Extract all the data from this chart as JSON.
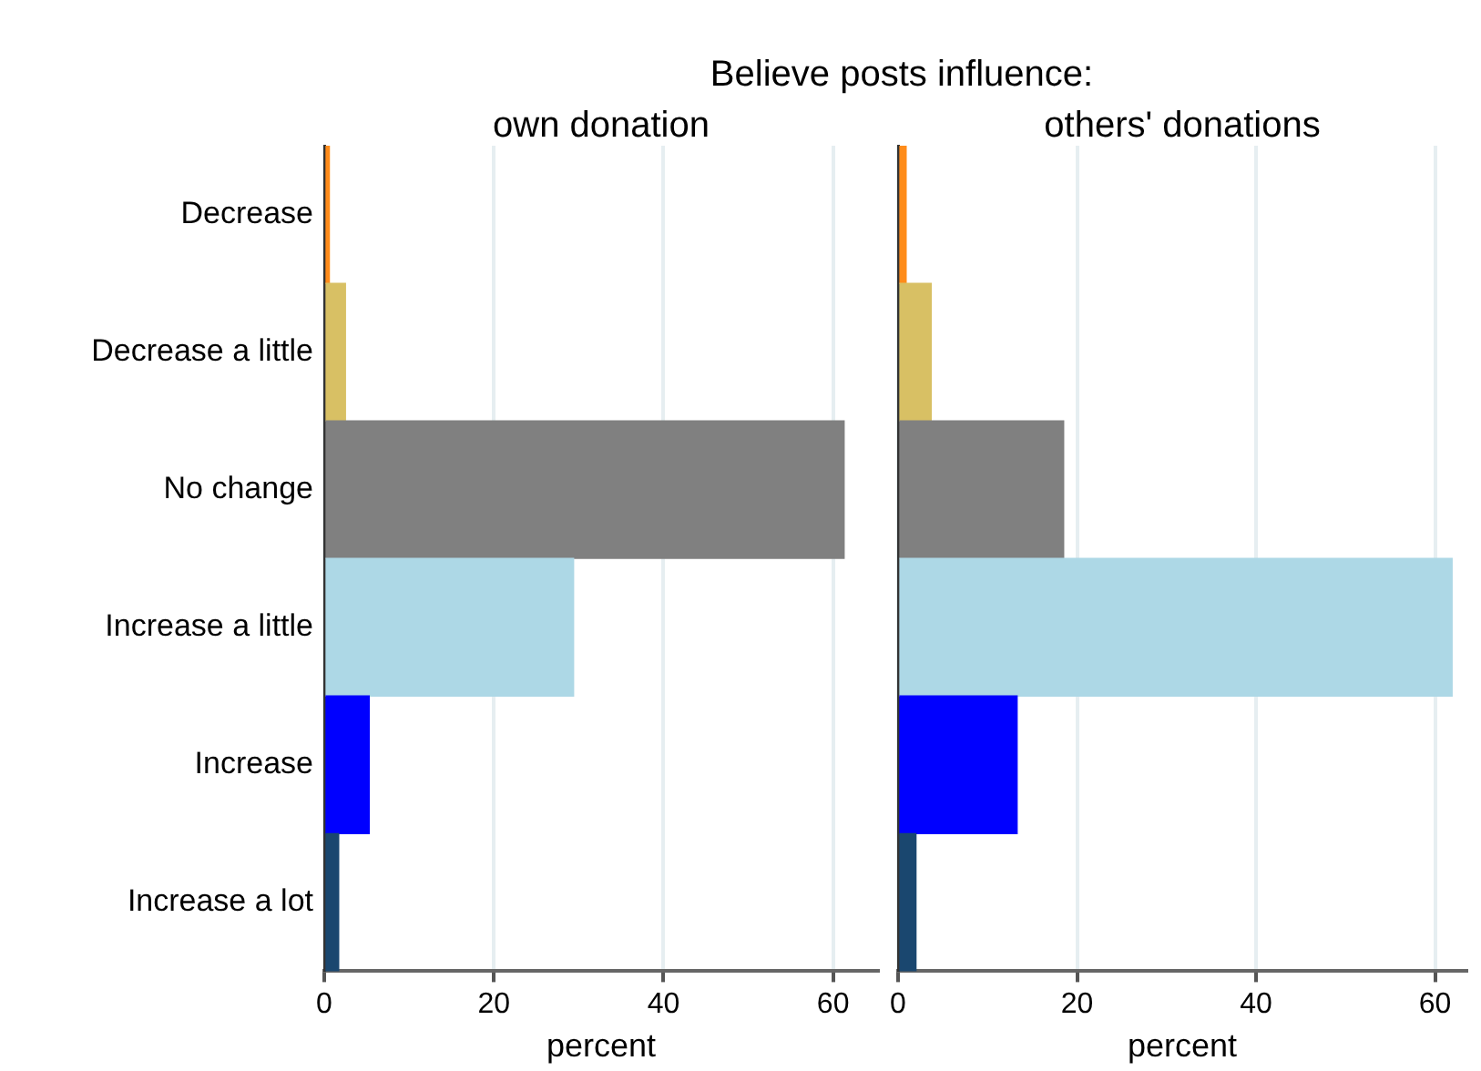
{
  "chart_data": [
    {
      "type": "bar",
      "orientation": "horizontal",
      "title": "Believe posts influence:",
      "subtitle": "own donation",
      "xlabel": "percent",
      "categories": [
        "Decrease",
        "Decrease a little",
        "No change",
        "Increase a little",
        "Increase",
        "Increase a lot"
      ],
      "values": [
        0.6,
        2.5,
        61.3,
        29.4,
        5.3,
        1.7
      ],
      "colors": [
        "#ff8c1a",
        "#d8c064",
        "#808080",
        "#add8e6",
        "#0000ff",
        "#1a476f"
      ],
      "xlim": [
        0,
        65.3
      ],
      "xticks": [
        0,
        20,
        40,
        60
      ],
      "grid": "x"
    },
    {
      "type": "bar",
      "orientation": "horizontal",
      "subtitle": "others' donations",
      "xlabel": "percent",
      "categories": [
        null,
        null,
        null,
        null,
        null,
        null
      ],
      "values": [
        0.9,
        3.7,
        18.5,
        61.9,
        13.3,
        2.0
      ],
      "colors": [
        "#ff8c1a",
        "#d8c064",
        "#808080",
        "#add8e6",
        "#0000ff",
        "#1a476f"
      ],
      "xlim": [
        0,
        63.5
      ],
      "xticks": [
        0,
        20,
        40,
        60
      ],
      "grid": "x",
      "tick_labels": "x"
    }
  ]
}
